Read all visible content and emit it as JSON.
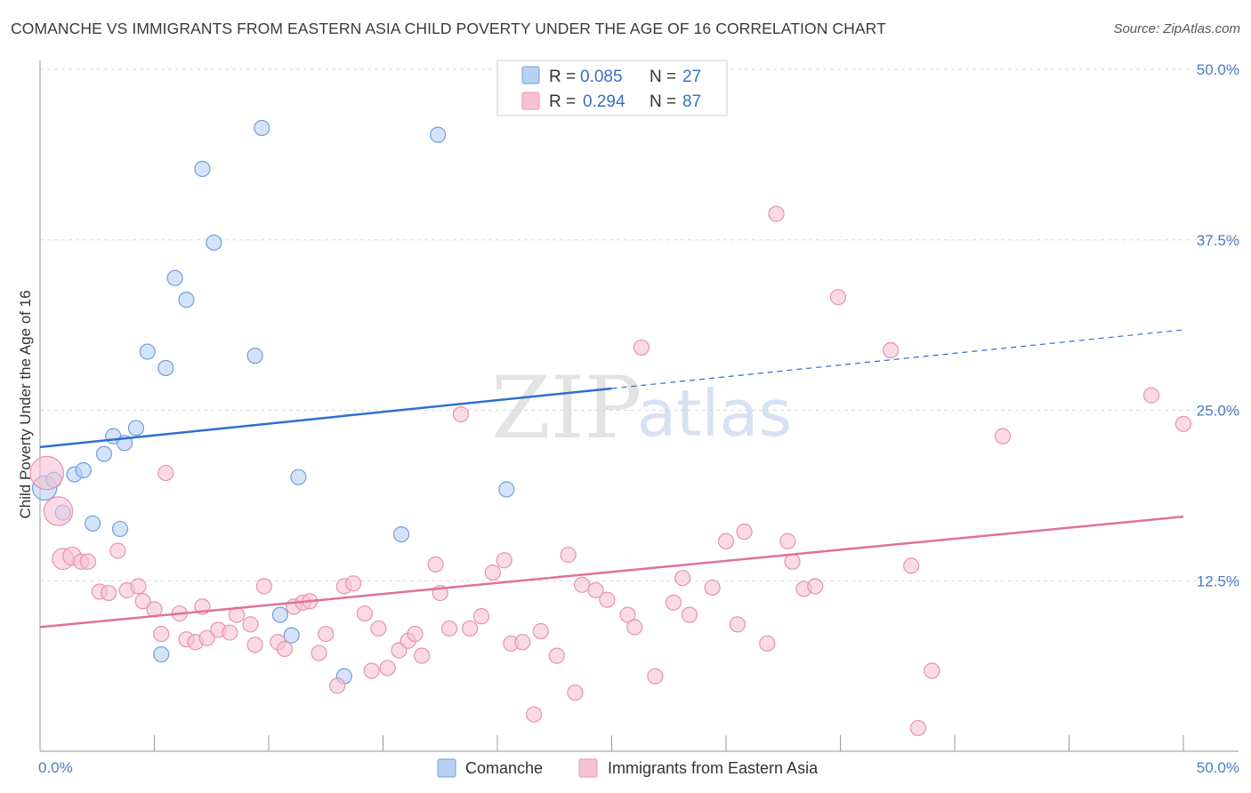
{
  "header": {
    "title": "COMANCHE VS IMMIGRANTS FROM EASTERN ASIA CHILD POVERTY UNDER THE AGE OF 16 CORRELATION CHART",
    "source": "Source: ZipAtlas.com"
  },
  "watermark": {
    "zip": "ZIP",
    "atlas": "atlas"
  },
  "colors": {
    "comanche_fill": "#b7d1f2",
    "comanche_stroke": "#6f9fdc",
    "comanche_line": "#2f6fd0",
    "eastasia_fill": "#f7c3d3",
    "eastasia_stroke": "#e793ae",
    "eastasia_line": "#e0709a",
    "grid": "#d9d9d9",
    "axis": "#999999"
  },
  "legend": {
    "rows": [
      {
        "r_label": "R =",
        "r_value": "0.085",
        "n_label": "N =",
        "n_value": "27"
      },
      {
        "r_label": "R =",
        "r_value": "0.294",
        "n_label": "N =",
        "n_value": "87"
      }
    ]
  },
  "chart_data": {
    "type": "scatter",
    "title": "COMANCHE VS IMMIGRANTS FROM EASTERN ASIA CHILD POVERTY UNDER THE AGE OF 16 CORRELATION CHART",
    "xlabel": "",
    "ylabel": "Child Poverty Under the Age of 16",
    "xlim": [
      0,
      50
    ],
    "ylim": [
      0,
      50
    ],
    "x_tick_labels": [
      "0.0%",
      "50.0%"
    ],
    "y_tick_labels": [
      "12.5%",
      "25.0%",
      "37.5%",
      "50.0%"
    ],
    "y_ticks": [
      12.5,
      25.0,
      37.5,
      50.0
    ],
    "grid": true,
    "legend_position": "top-center",
    "series": [
      {
        "name": "Comanche",
        "r": 0.085,
        "n": 27,
        "trend": {
          "x0": 0,
          "y0": 22.3,
          "x1": 25,
          "y1": 26.6,
          "x_dash_end": 50,
          "y_dash_end": 30.9
        },
        "points": [
          [
            0.2,
            19.3,
            1.6
          ],
          [
            0.6,
            19.9,
            1
          ],
          [
            1.0,
            17.5,
            1
          ],
          [
            1.5,
            20.3,
            1
          ],
          [
            1.9,
            20.6,
            1
          ],
          [
            2.3,
            16.7,
            1
          ],
          [
            2.8,
            21.8,
            1
          ],
          [
            3.2,
            23.1,
            1
          ],
          [
            3.5,
            16.3,
            1
          ],
          [
            3.7,
            22.6,
            1
          ],
          [
            4.2,
            23.7,
            1
          ],
          [
            4.7,
            29.3,
            1
          ],
          [
            5.3,
            7.1,
            1
          ],
          [
            5.5,
            28.1,
            1
          ],
          [
            5.9,
            34.7,
            1
          ],
          [
            6.4,
            33.1,
            1
          ],
          [
            7.1,
            42.7,
            1
          ],
          [
            7.6,
            37.3,
            1
          ],
          [
            9.4,
            29.0,
            1
          ],
          [
            9.7,
            45.7,
            1
          ],
          [
            10.5,
            10.0,
            1
          ],
          [
            11.0,
            8.5,
            1
          ],
          [
            11.3,
            20.1,
            1
          ],
          [
            13.3,
            5.5,
            1
          ],
          [
            15.8,
            15.9,
            1
          ],
          [
            17.4,
            45.2,
            1
          ],
          [
            20.4,
            19.2,
            1
          ]
        ]
      },
      {
        "name": "Immigrants from Eastern Asia",
        "r": 0.294,
        "n": 87,
        "trend": {
          "x0": 0,
          "y0": 9.1,
          "x1": 50,
          "y1": 17.2
        },
        "points": [
          [
            0.3,
            20.4,
            2.2
          ],
          [
            0.8,
            17.6,
            1.9
          ],
          [
            1.0,
            14.1,
            1.4
          ],
          [
            1.4,
            14.3,
            1.2
          ],
          [
            1.8,
            13.9,
            1
          ],
          [
            2.1,
            13.9,
            1
          ],
          [
            2.6,
            11.7,
            1
          ],
          [
            3.0,
            11.6,
            1
          ],
          [
            3.4,
            14.7,
            1
          ],
          [
            3.8,
            11.8,
            1
          ],
          [
            4.3,
            12.1,
            1
          ],
          [
            4.5,
            11.0,
            1
          ],
          [
            5.0,
            10.4,
            1
          ],
          [
            5.3,
            8.6,
            1
          ],
          [
            5.5,
            20.4,
            1
          ],
          [
            6.1,
            10.1,
            1
          ],
          [
            6.4,
            8.2,
            1
          ],
          [
            6.8,
            8.0,
            1
          ],
          [
            7.1,
            10.6,
            1
          ],
          [
            7.3,
            8.3,
            1
          ],
          [
            7.8,
            8.9,
            1
          ],
          [
            8.3,
            8.7,
            1
          ],
          [
            8.6,
            10.0,
            1
          ],
          [
            9.2,
            9.3,
            1
          ],
          [
            9.4,
            7.8,
            1
          ],
          [
            9.8,
            12.1,
            1
          ],
          [
            10.4,
            8.0,
            1
          ],
          [
            10.7,
            7.5,
            1
          ],
          [
            11.1,
            10.6,
            1
          ],
          [
            11.5,
            10.9,
            1
          ],
          [
            11.8,
            11.0,
            1
          ],
          [
            12.2,
            7.2,
            1
          ],
          [
            12.5,
            8.6,
            1
          ],
          [
            13.0,
            4.8,
            1
          ],
          [
            13.3,
            12.1,
            1
          ],
          [
            13.7,
            12.3,
            1
          ],
          [
            14.2,
            10.1,
            1
          ],
          [
            14.5,
            5.9,
            1
          ],
          [
            14.8,
            9.0,
            1
          ],
          [
            15.2,
            6.1,
            1
          ],
          [
            15.7,
            7.4,
            1
          ],
          [
            16.1,
            8.1,
            1
          ],
          [
            16.4,
            8.6,
            1
          ],
          [
            16.7,
            7.0,
            1
          ],
          [
            17.3,
            13.7,
            1
          ],
          [
            17.5,
            11.6,
            1
          ],
          [
            17.9,
            9.0,
            1
          ],
          [
            18.4,
            24.7,
            1
          ],
          [
            18.8,
            9.0,
            1
          ],
          [
            19.3,
            9.9,
            1
          ],
          [
            19.8,
            13.1,
            1
          ],
          [
            20.3,
            14.0,
            1
          ],
          [
            20.6,
            7.9,
            1
          ],
          [
            21.1,
            8.0,
            1
          ],
          [
            21.6,
            2.7,
            1
          ],
          [
            21.9,
            8.8,
            1
          ],
          [
            22.6,
            7.0,
            1
          ],
          [
            23.1,
            14.4,
            1
          ],
          [
            23.4,
            4.3,
            1
          ],
          [
            23.7,
            12.2,
            1
          ],
          [
            24.3,
            11.8,
            1
          ],
          [
            24.8,
            11.1,
            1
          ],
          [
            25.7,
            10.0,
            1
          ],
          [
            26.0,
            9.1,
            1
          ],
          [
            26.3,
            29.6,
            1
          ],
          [
            26.9,
            5.5,
            1
          ],
          [
            27.7,
            10.9,
            1
          ],
          [
            28.1,
            12.7,
            1
          ],
          [
            28.4,
            10.0,
            1
          ],
          [
            29.4,
            12.0,
            1
          ],
          [
            30.0,
            15.4,
            1
          ],
          [
            30.5,
            9.3,
            1
          ],
          [
            30.8,
            16.1,
            1
          ],
          [
            31.8,
            7.9,
            1
          ],
          [
            32.2,
            39.4,
            1
          ],
          [
            32.7,
            15.4,
            1
          ],
          [
            32.9,
            13.9,
            1
          ],
          [
            33.4,
            11.9,
            1
          ],
          [
            33.9,
            12.1,
            1
          ],
          [
            34.9,
            33.3,
            1
          ],
          [
            37.2,
            29.4,
            1
          ],
          [
            38.1,
            13.6,
            1
          ],
          [
            38.4,
            1.7,
            1
          ],
          [
            39.0,
            5.9,
            1
          ],
          [
            42.1,
            23.1,
            1
          ],
          [
            48.6,
            26.1,
            1
          ],
          [
            50.0,
            24.0,
            1
          ]
        ]
      }
    ]
  },
  "bottom_legend": [
    {
      "label": "Comanche"
    },
    {
      "label": "Immigrants from Eastern Asia"
    }
  ]
}
